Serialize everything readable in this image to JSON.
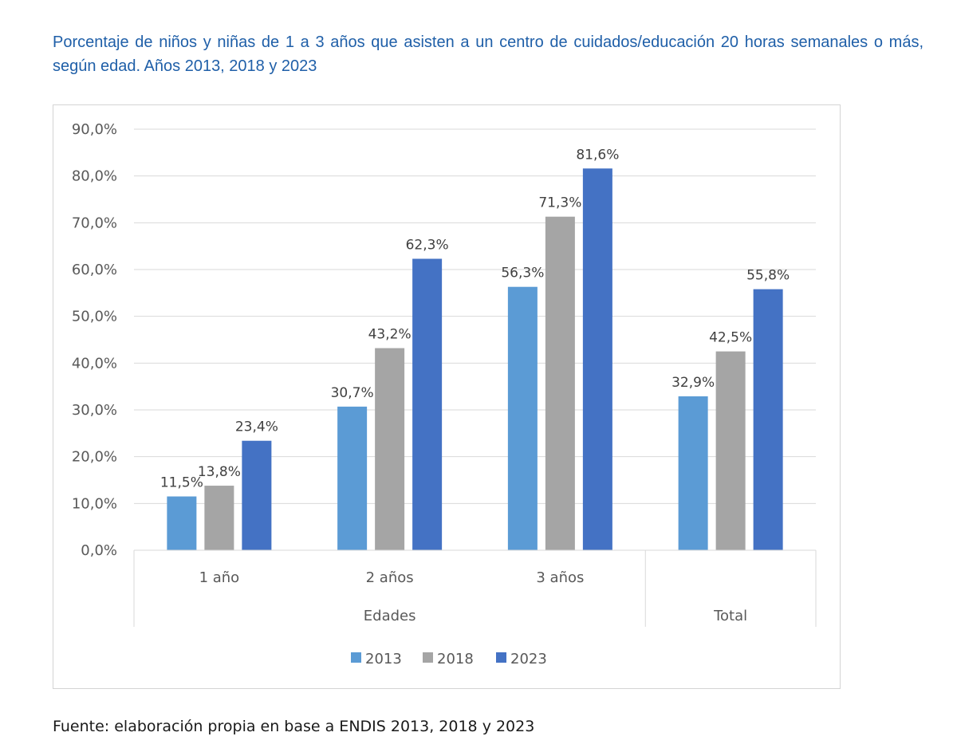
{
  "title": "Porcentaje de niños y niñas de 1 a 3 años que asisten a un centro de cuidados/educación 20 horas semanales o más, según edad. Años 2013, 2018 y 2023",
  "source": "Fuente: elaboración propia en base a ENDIS 2013, 2018 y 2023",
  "chart_data": {
    "type": "bar",
    "categories": [
      "1 año",
      "2 años",
      "3 años",
      "Total"
    ],
    "category_groups": [
      {
        "label": "Edades",
        "categories": [
          "1 año",
          "2 años",
          "3 años"
        ]
      },
      {
        "label": "",
        "categories": [
          "Total"
        ]
      }
    ],
    "series": [
      {
        "name": "2013",
        "values": [
          11.5,
          30.7,
          56.3,
          32.9
        ],
        "labels": [
          "11,5%",
          "30,7%",
          "56,3%",
          "32,9%"
        ],
        "color": "#5b9bd5"
      },
      {
        "name": "2018",
        "values": [
          13.8,
          43.2,
          71.3,
          42.5
        ],
        "labels": [
          "13,8%",
          "43,2%",
          "71,3%",
          "42,5%"
        ],
        "color": "#a5a5a5"
      },
      {
        "name": "2023",
        "values": [
          23.4,
          62.3,
          81.6,
          55.8
        ],
        "labels": [
          "23,4%",
          "62,3%",
          "81,6%",
          "55,8%"
        ],
        "color": "#4472c4"
      }
    ],
    "ylim": [
      0,
      90
    ],
    "yticks": [
      0,
      10,
      20,
      30,
      40,
      50,
      60,
      70,
      80,
      90
    ],
    "ytick_labels": [
      "0,0%",
      "10,0%",
      "20,0%",
      "30,0%",
      "40,0%",
      "50,0%",
      "60,0%",
      "70,0%",
      "80,0%",
      "90,0%"
    ],
    "grid": true,
    "legend": "bottom",
    "xlabel": "",
    "ylabel": ""
  }
}
